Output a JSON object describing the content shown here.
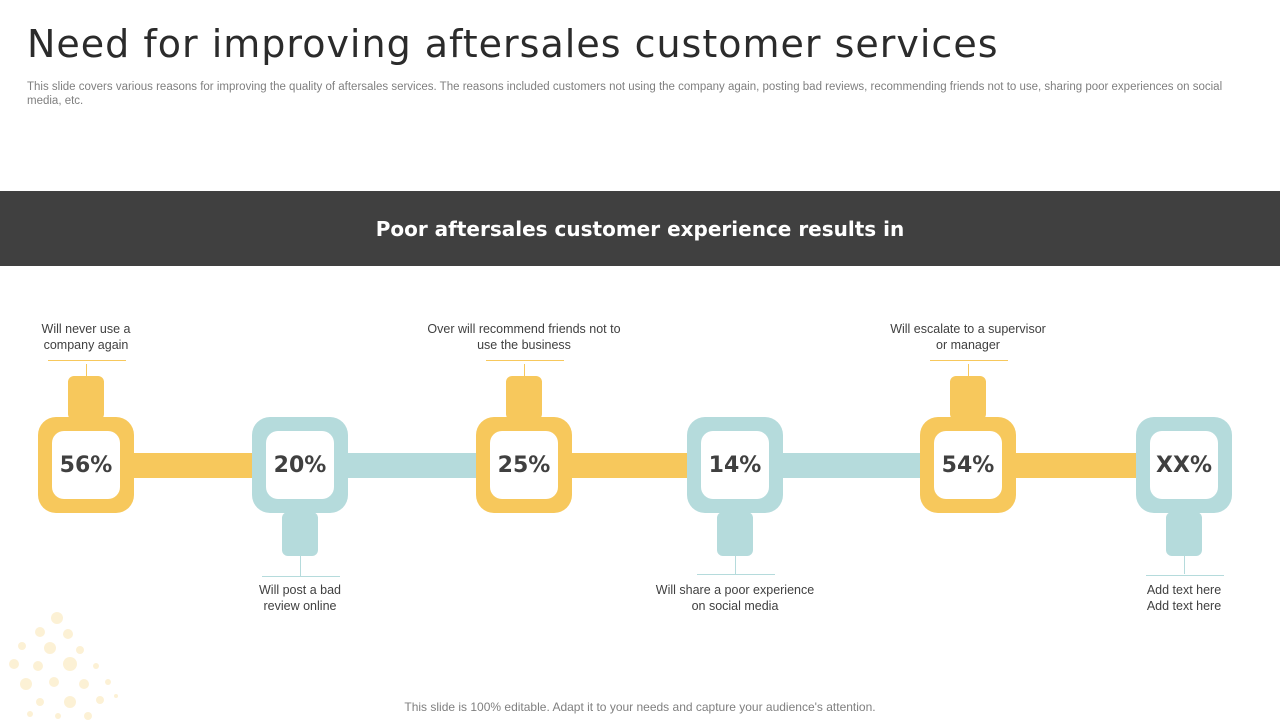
{
  "title": "Need for improving aftersales customer services",
  "subtitle": "This slide covers various reasons for improving the quality of aftersales services. The reasons included customers not using the company again, posting bad reviews, recommending friends not to use, sharing poor experiences on social media, etc.",
  "banner": "Poor aftersales customer experience results in",
  "colors": {
    "yellow": "#f7c85c",
    "teal": "#b5dbdc",
    "banner": "#404040"
  },
  "items": [
    {
      "value": "56%",
      "label": "Will never  use a company again",
      "color": "yellow"
    },
    {
      "value": "20%",
      "label": "Will post a bad review  online",
      "color": "teal"
    },
    {
      "value": "25%",
      "label": "Over will recommend friends not to use the business",
      "color": "yellow"
    },
    {
      "value": "14%",
      "label": "Will share  a poor experience on social media",
      "color": "teal"
    },
    {
      "value": "54%",
      "label": "Will escalate to a supervisor or manager",
      "color": "yellow"
    },
    {
      "value": "XX%",
      "label": "Add text here Add text here",
      "color": "teal"
    }
  ],
  "footer": "This slide is 100% editable. Adapt it to your needs and capture your audience's attention."
}
